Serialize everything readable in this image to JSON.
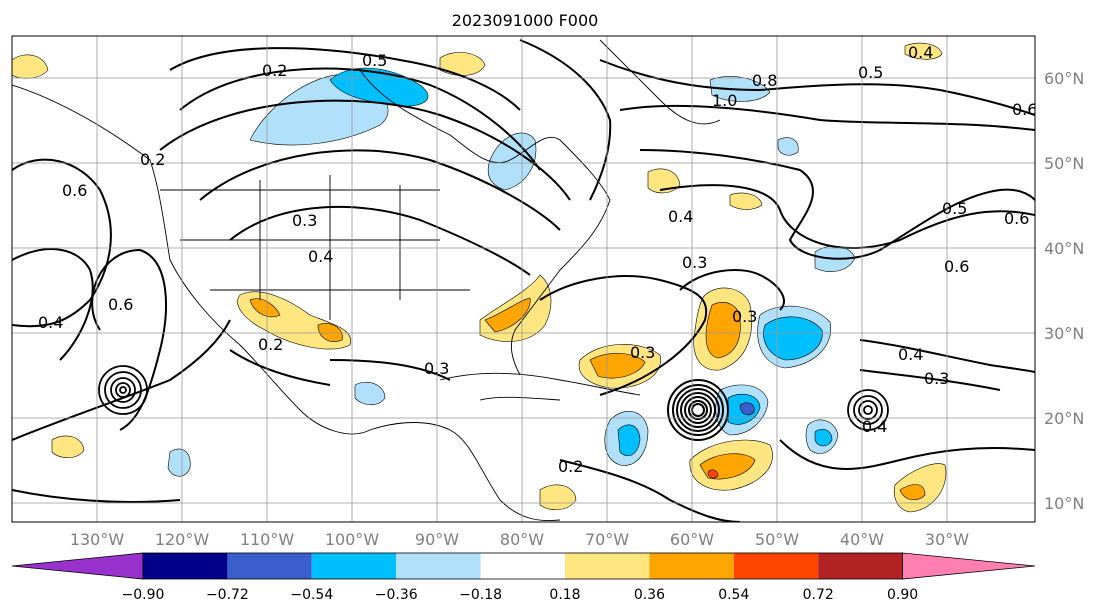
{
  "title": "2023091000 F000",
  "lon_labels": [
    "130°W",
    "120°W",
    "110°W",
    "100°W",
    "90°W",
    "80°W",
    "70°W",
    "60°W",
    "50°W",
    "40°W",
    "30°W"
  ],
  "lat_labels": [
    "60°N",
    "50°N",
    "40°N",
    "30°N",
    "20°N",
    "10°N"
  ],
  "colorbar": {
    "ticks": [
      "−0.90",
      "−0.72",
      "−0.54",
      "−0.36",
      "−0.18",
      "0.18",
      "0.36",
      "0.54",
      "0.72",
      "0.90"
    ],
    "colors": [
      "#9932cc",
      "#00008b",
      "#3a5fcd",
      "#00bfff",
      "#b0e0fa",
      "#ffffff",
      "#ffe680",
      "#ffa500",
      "#ff4500",
      "#b22222",
      "#ff80b0"
    ]
  },
  "contour_labels": [
    "0.2",
    "0.5",
    "1.0",
    "0.8",
    "0.5",
    "0.4",
    "0.6",
    "0.2",
    "0.3",
    "0.4",
    "0.6",
    "0.4",
    "0.3",
    "0.6",
    "0.5",
    "0.6",
    "0.3",
    "0.4",
    "0.3",
    "0.4",
    "0.3",
    "0.3",
    "0.2",
    "0.2",
    "0.4",
    "0.6"
  ],
  "colors": {
    "contour": "#000000",
    "grid": "#999999",
    "coast": "#000000",
    "tick_text": "#808080"
  }
}
